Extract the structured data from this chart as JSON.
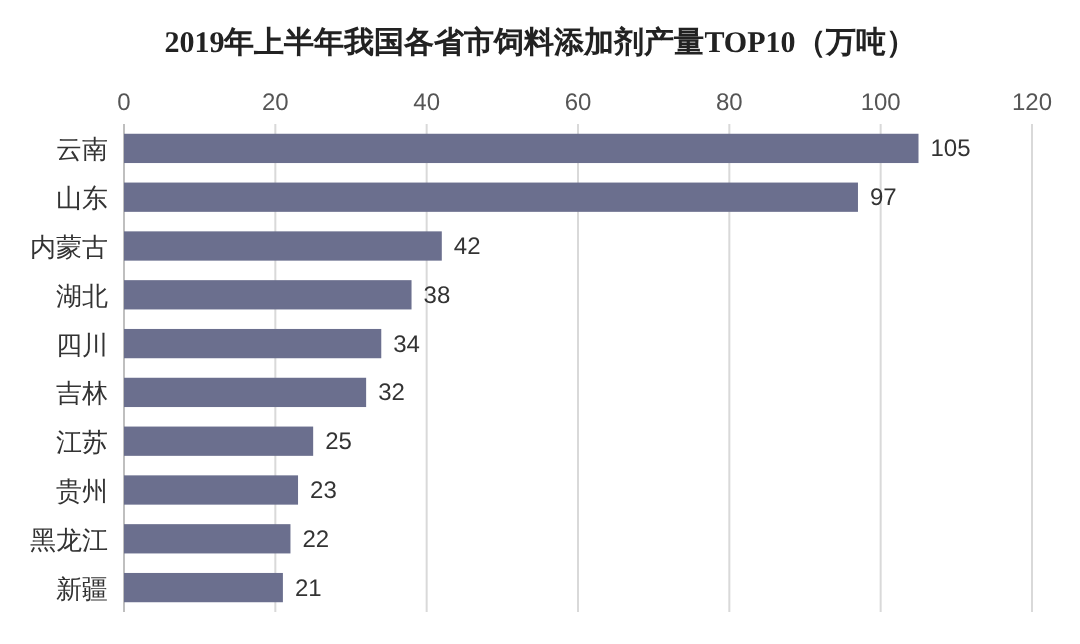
{
  "chart_data": {
    "type": "bar",
    "orientation": "horizontal",
    "title": "2019年上半年我国各省市饲料添加剂产量TOP10（万吨）",
    "categories": [
      "云南",
      "山东",
      "内蒙古",
      "湖北",
      "四川",
      "吉林",
      "江苏",
      "贵州",
      "黑龙江",
      "新疆"
    ],
    "values": [
      105,
      97,
      42,
      38,
      34,
      32,
      25,
      23,
      22,
      21
    ],
    "color": "#6b6f8e",
    "xlim": [
      0,
      120
    ],
    "xticks": [
      0,
      20,
      40,
      60,
      80,
      100,
      120
    ],
    "grid": "x",
    "data_labels": true
  }
}
